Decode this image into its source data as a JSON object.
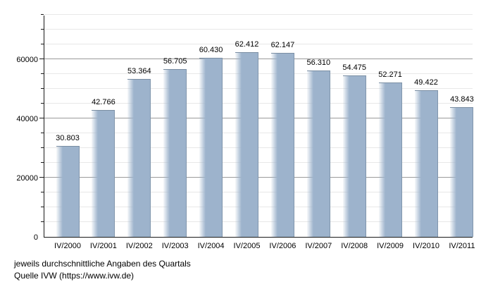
{
  "chart_data": {
    "type": "bar",
    "title": "",
    "xlabel": "",
    "ylabel": "",
    "categories": [
      "IV/2000",
      "IV/2001",
      "IV/2002",
      "IV/2003",
      "IV/2004",
      "IV/2005",
      "IV/2006",
      "IV/2007",
      "IV/2008",
      "IV/2009",
      "IV/2010",
      "IV/2011"
    ],
    "values": [
      30803,
      42766,
      53364,
      56705,
      60430,
      62412,
      62147,
      56310,
      54475,
      52271,
      49422,
      43843
    ],
    "value_labels": [
      "30.803",
      "42.766",
      "53.364",
      "56.705",
      "60.430",
      "62.412",
      "62.147",
      "56.310",
      "54.475",
      "52.271",
      "49.422",
      "43.843"
    ],
    "ylim": [
      0,
      75000
    ],
    "y_major_ticks": [
      0,
      20000,
      40000,
      60000
    ],
    "y_major_tick_labels": [
      "0",
      "20000",
      "40000",
      "60000"
    ],
    "y_minor_step": 5000,
    "grid": "horizontal, minor every 5000, major every 20000, drawn behind bars",
    "legend": "none",
    "bar_color": "#9db3cc",
    "bar_top_edge_color": "#7a8ea3",
    "major_grid_color": "#9a9a9a",
    "minor_grid_color": "#e8e8e8",
    "axis_color": "#1a1a1a"
  },
  "footer": {
    "line1": "jeweils durchschnittliche Angaben des Quartals",
    "line2": "Quelle IVW (https://www.ivw.de)"
  }
}
